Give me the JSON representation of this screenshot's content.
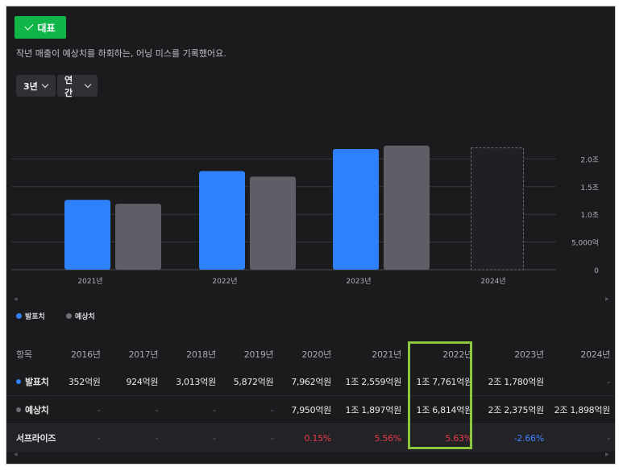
{
  "badge": {
    "label": "대표"
  },
  "description": "작년 매출이 예상치를 하회하는, 어닝 미스를 기록했어요.",
  "controls": {
    "period": "3년",
    "frequency": "연간"
  },
  "colors": {
    "actual": "#2f80fb",
    "estimate": "#5e5e66",
    "positive": "#e8394a",
    "negative": "#3d82ff",
    "highlight": "#8dc63f"
  },
  "chart_data": {
    "type": "bar",
    "categories": [
      "2021년",
      "2022년",
      "2023년",
      "2024년"
    ],
    "series": [
      {
        "name": "발표치",
        "values": [
          1.26,
          1.78,
          2.18,
          null
        ]
      },
      {
        "name": "예상치",
        "values": [
          1.19,
          1.68,
          2.24,
          2.2
        ]
      }
    ],
    "y_ticks": [
      {
        "value": 0,
        "label": "0"
      },
      {
        "value": 0.5,
        "label": "5,000억"
      },
      {
        "value": 1.0,
        "label": "1.0조"
      },
      {
        "value": 1.5,
        "label": "1.5조"
      },
      {
        "value": 2.0,
        "label": "2.0조"
      }
    ],
    "ylim": [
      0,
      2.5
    ],
    "grid": true,
    "legend_position": "bottom-left"
  },
  "table": {
    "header": [
      "항목",
      "2016년",
      "2017년",
      "2018년",
      "2019년",
      "2020년",
      "2021년",
      "2022년",
      "2023년",
      "2024년"
    ],
    "rows": [
      {
        "label": "발표치",
        "cells": [
          "352억원",
          "924억원",
          "3,013억원",
          "5,872억원",
          "7,962억원",
          "1조 2,559억원",
          "1조 7,761억원",
          "2조 1,780억원",
          "-"
        ]
      },
      {
        "label": "예상치",
        "cells": [
          "-",
          "-",
          "-",
          "-",
          "7,950억원",
          "1조 1,897억원",
          "1조 6,814억원",
          "2조 2,375억원",
          "2조 1,898억원"
        ]
      },
      {
        "label": "서프라이즈",
        "cells": [
          "-",
          "-",
          "-",
          "-",
          "0.15%",
          "5.56%",
          "5.63%",
          "-2.66%",
          "-"
        ]
      }
    ]
  }
}
